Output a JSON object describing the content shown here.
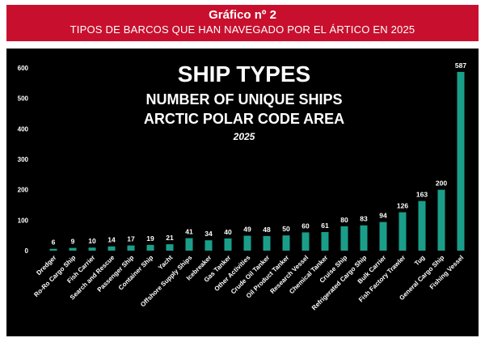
{
  "header": {
    "line1": "Gráfico nº 2",
    "line2": "TIPOS DE BARCOS QUE HAN NAVEGADO POR EL ÁRTICO EN 2025"
  },
  "colors": {
    "header_bg": "#c8102e",
    "panel_bg": "#000000",
    "bar": "#1a9e8a",
    "text": "#ffffff"
  },
  "chart_data": {
    "type": "bar",
    "title": "SHIP TYPES",
    "subtitle_lines": [
      "NUMBER OF UNIQUE SHIPS",
      "ARCTIC POLAR CODE AREA"
    ],
    "year": "2025",
    "xlabel": "",
    "ylabel": "",
    "ylim": [
      0,
      600
    ],
    "yticks": [
      0,
      100,
      200,
      300,
      400,
      500,
      600
    ],
    "grid": false,
    "legend": "none",
    "data_labels": true,
    "categories": [
      "Dredger",
      "Ro-Ro Cargo Ship",
      "Fish Carrier",
      "Search and Rescue",
      "Passenger Ship",
      "Container Ship",
      "Yacht",
      "Offshore Supply Ships",
      "Icebreaker",
      "Gas Tanker",
      "Other Activities",
      "Crude Oil Tanker",
      "Oil Product Tanker",
      "Research Vessel",
      "Chemical Tanker",
      "Cruise Ship",
      "Refrigerated Cargo Ship",
      "Bulk Carrier",
      "Fish Factory Trawler",
      "Tug",
      "General Cargo Ship",
      "Fishing Vessel"
    ],
    "values": [
      6,
      9,
      10,
      14,
      17,
      19,
      21,
      41,
      34,
      40,
      49,
      48,
      50,
      60,
      61,
      80,
      83,
      94,
      126,
      163,
      200,
      587
    ]
  }
}
